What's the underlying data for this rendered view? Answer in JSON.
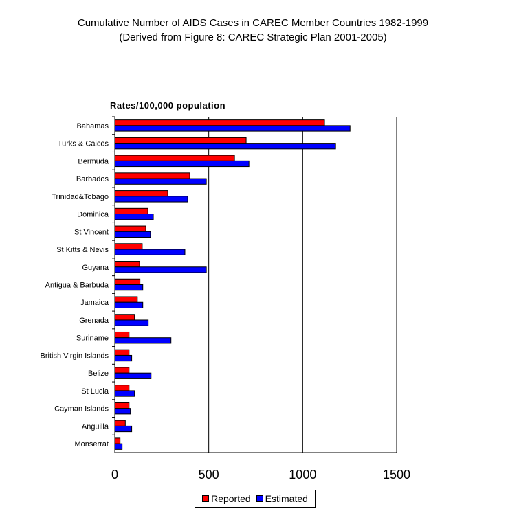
{
  "chart_data": {
    "type": "bar",
    "orientation": "horizontal",
    "title": "Cumulative Number of AIDS Cases in CAREC Member Countries 1982-1999",
    "subtitle": "(Derived from Figure 8: CAREC Strategic Plan 2001-2005)",
    "ylabel": "Rates/100,000 population",
    "xlabel": "",
    "xlim": [
      0,
      1500
    ],
    "xticks": [
      "0",
      "500",
      "1000",
      "1500"
    ],
    "grid": true,
    "legend_position": "bottom",
    "categories": [
      "Bahamas",
      "Turks & Caicos",
      "Bermuda",
      "Barbados",
      "Trinidad&Tobago",
      "Dominica",
      "St Vincent",
      "St Kitts & Nevis",
      "Guyana",
      "Antigua & Barbuda",
      "Jamaica",
      "Grenada",
      "Suriname",
      "British Virgin Islands",
      "Belize",
      "St Lucia",
      "Cayman Islands",
      "Anguilla",
      "Monserrat"
    ],
    "series": [
      {
        "name": "Reported",
        "color": "#ff0000",
        "values": [
          1116,
          699,
          637,
          399,
          282,
          176,
          165,
          146,
          132,
          134,
          120,
          105,
          76,
          76,
          76,
          76,
          76,
          56,
          28
        ]
      },
      {
        "name": "Estimated",
        "color": "#0000ff",
        "values": [
          1252,
          1175,
          714,
          487,
          388,
          205,
          190,
          373,
          487,
          149,
          149,
          178,
          299,
          90,
          193,
          105,
          83,
          90,
          39
        ]
      }
    ]
  }
}
